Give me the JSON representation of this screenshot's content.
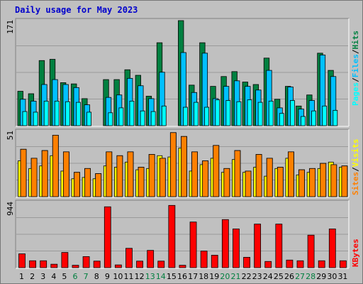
{
  "title": "Daily usage for May 2023",
  "colors": {
    "hits": "#008040",
    "files": "#00c0ff",
    "pages": "#00ffff",
    "visits": "#ff8000",
    "sites": "#ffff00",
    "kbytes": "#ff0000",
    "weekend_label": "#007f3f",
    "weekday_label": "#000000"
  },
  "chart_data": [
    {
      "type": "bar",
      "categories": [
        "1",
        "2",
        "3",
        "4",
        "5",
        "6",
        "7",
        "8",
        "9",
        "10",
        "11",
        "12",
        "13",
        "14",
        "15",
        "16",
        "17",
        "18",
        "19",
        "20",
        "21",
        "22",
        "23",
        "24",
        "25",
        "26",
        "27",
        "28",
        "29",
        "30",
        "31"
      ],
      "weekend_days": [
        "6",
        "7",
        "13",
        "14",
        "20",
        "21",
        "27",
        "28"
      ],
      "ymax_label": "171",
      "ylim": [
        0,
        171
      ],
      "legend": [
        "Pages",
        "/",
        "Files",
        "/",
        "Hits"
      ],
      "series": [
        {
          "name": "Hits",
          "values": [
            56,
            52,
            106,
            108,
            70,
            68,
            44,
            0,
            75,
            75,
            91,
            82,
            48,
            135,
            0,
            171,
            66,
            135,
            64,
            80,
            88,
            71,
            67,
            110,
            43,
            64,
            32,
            50,
            118,
            90,
            0
          ]
        },
        {
          "name": "Files",
          "values": [
            43,
            40,
            67,
            75,
            67,
            62,
            34,
            0,
            46,
            50,
            77,
            65,
            44,
            87,
            0,
            119,
            54,
            118,
            44,
            64,
            73,
            64,
            58,
            90,
            29,
            63,
            27,
            41,
            115,
            80,
            0
          ]
        },
        {
          "name": "Pages",
          "values": [
            23,
            22,
            40,
            40,
            39,
            38,
            22,
            0,
            21,
            29,
            40,
            24,
            23,
            32,
            0,
            30,
            38,
            30,
            42,
            41,
            39,
            42,
            38,
            40,
            20,
            41,
            15,
            24,
            32,
            25,
            0
          ]
        }
      ]
    },
    {
      "type": "bar",
      "categories": [
        "1",
        "2",
        "3",
        "4",
        "5",
        "6",
        "7",
        "8",
        "9",
        "10",
        "11",
        "12",
        "13",
        "14",
        "15",
        "16",
        "17",
        "18",
        "19",
        "20",
        "21",
        "22",
        "23",
        "24",
        "25",
        "26",
        "27",
        "28",
        "29",
        "30",
        "31"
      ],
      "ymax_label": "51",
      "ylim": [
        0,
        51
      ],
      "legend": [
        "Sites",
        "/",
        "Visits"
      ],
      "series": [
        {
          "name": "Visits",
          "values": [
            37,
            30,
            36,
            48,
            35,
            19,
            22,
            18,
            35,
            32,
            35,
            23,
            33,
            30,
            50,
            47,
            35,
            28,
            40,
            22,
            36,
            20,
            33,
            30,
            23,
            35,
            21,
            22,
            26,
            25,
            24
          ]
        },
        {
          "name": "Sites",
          "values": [
            28,
            22,
            24,
            32,
            20,
            14,
            15,
            14,
            24,
            23,
            27,
            21,
            22,
            32,
            31,
            38,
            20,
            25,
            30,
            19,
            29,
            19,
            23,
            16,
            22,
            30,
            17,
            19,
            22,
            27,
            23
          ]
        }
      ]
    },
    {
      "type": "bar",
      "categories": [
        "1",
        "2",
        "3",
        "4",
        "5",
        "6",
        "7",
        "8",
        "9",
        "10",
        "11",
        "12",
        "13",
        "14",
        "15",
        "16",
        "17",
        "18",
        "19",
        "20",
        "21",
        "22",
        "23",
        "24",
        "25",
        "26",
        "27",
        "28",
        "29",
        "30",
        "31"
      ],
      "ymax_label": "944",
      "ylim": [
        0,
        944
      ],
      "legend": [
        "KBytes"
      ],
      "series": [
        {
          "name": "KBytes",
          "values": [
            200,
            100,
            100,
            50,
            220,
            35,
            160,
            95,
            880,
            40,
            280,
            95,
            250,
            95,
            900,
            35,
            660,
            240,
            180,
            695,
            560,
            150,
            630,
            90,
            630,
            110,
            100,
            470,
            100,
            560,
            100
          ]
        }
      ]
    }
  ]
}
